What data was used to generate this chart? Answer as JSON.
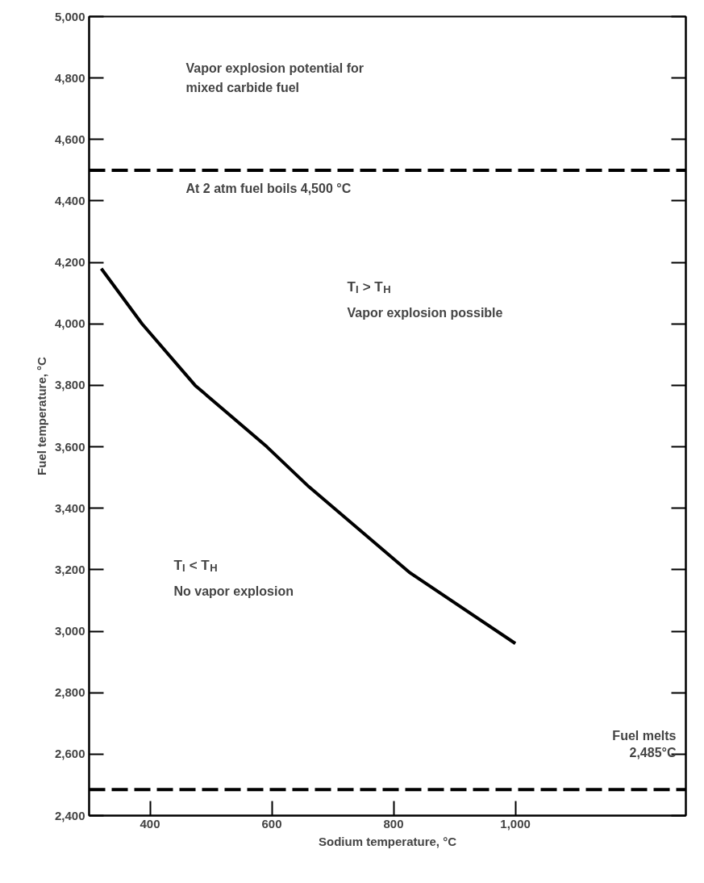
{
  "chart_data": {
    "type": "line",
    "xlabel": "Sodium temperature, °C",
    "ylabel": "Fuel temperature, °C",
    "x": [
      320,
      387,
      474,
      592,
      661,
      827,
      1000
    ],
    "series": [
      {
        "color": "#000000",
        "values": [
          4180,
          4000,
          3800,
          3600,
          3470,
          3190,
          2960
        ]
      }
    ],
    "xlim": [
      300,
      1280
    ],
    "ylim": [
      2400,
      5000
    ],
    "xticks": [
      400,
      600,
      800,
      {
        "value": 1000,
        "label": "1,000"
      }
    ],
    "yticks": [
      {
        "value": 2400,
        "label": "2,400"
      },
      {
        "value": 2600,
        "label": "2,600"
      },
      {
        "value": 2800,
        "label": "2,800"
      },
      {
        "value": 3000,
        "label": "3,000"
      },
      {
        "value": 3200,
        "label": "3,200"
      },
      {
        "value": 3400,
        "label": "3,400"
      },
      {
        "value": 3600,
        "label": "3,600"
      },
      {
        "value": 3800,
        "label": "3,800"
      },
      {
        "value": 4000,
        "label": "4,000"
      },
      {
        "value": 4200,
        "label": "4,200"
      },
      {
        "value": 4400,
        "label": "4,400"
      },
      {
        "value": 4600,
        "label": "4,600"
      },
      {
        "value": 4800,
        "label": "4,800"
      },
      {
        "value": 5000,
        "label": "5,000"
      }
    ],
    "ref_lines": [
      {
        "axis": "y",
        "value": 4500,
        "label": "At 2 atm fuel boils 4,500 °C",
        "color": "#000000",
        "line_style": "dashed"
      },
      {
        "axis": "y",
        "value": 2485,
        "label": "Fuel melts\n2,485°C",
        "color": "#000000",
        "line_style": "dashed"
      }
    ],
    "annotations": [
      "Vapor explosion potential for\nmixed carbide fuel",
      "T$_{I}$ > T$_{H}$",
      "Vapor explosion possible",
      "T$_{I}$ < T$_{H}$",
      "No vapor explosion"
    ],
    "grid": false,
    "line_style": "solid",
    "marker": "none"
  }
}
